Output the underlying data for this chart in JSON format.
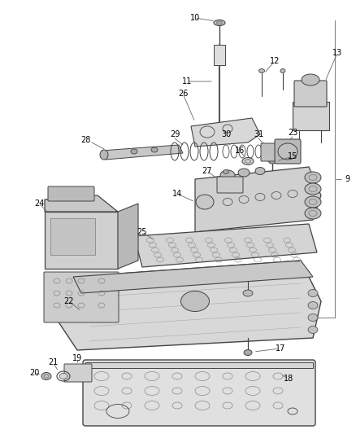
{
  "bg_color": "#ffffff",
  "line_color": "#444444",
  "label_color": "#000000",
  "fig_width": 4.39,
  "fig_height": 5.33,
  "dpi": 100
}
